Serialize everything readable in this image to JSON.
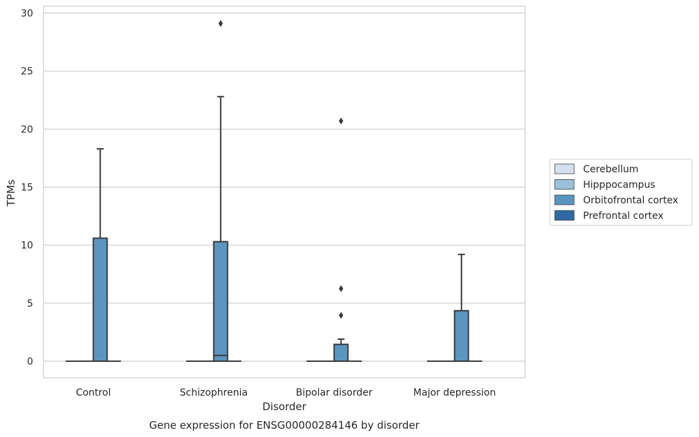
{
  "chart_data": {
    "type": "boxplot",
    "title": "Gene expression for ENSG00000284146 by disorder",
    "xlabel": "Disorder",
    "ylabel": "TPMs",
    "ylim": [
      -1.4,
      30.5
    ],
    "yticks": [
      0,
      5,
      10,
      15,
      20,
      25,
      30
    ],
    "grid": true,
    "legend_position": "right",
    "categories": [
      "Control",
      "Schizophrenia",
      "Bipolar disorder",
      "Major depression"
    ],
    "hue_order": [
      "Cerebellum",
      "Hipppocampus",
      "Orbitofrontal cortex",
      "Prefrontal cortex"
    ],
    "colors": {
      "Cerebellum": "#d4e1ee",
      "Hipppocampus": "#9ac0da",
      "Orbitofrontal cortex": "#5a96c0",
      "Prefrontal cortex": "#2f6aa3",
      "edge": "#3a3a3a",
      "grid": "#cccccc"
    },
    "boxes": [
      {
        "category": "Control",
        "hue": "Cerebellum",
        "q1": 0,
        "median": 0,
        "q3": 0,
        "whislo": 0,
        "whishi": 0,
        "fliers": []
      },
      {
        "category": "Control",
        "hue": "Hipppocampus",
        "q1": 0,
        "median": 0,
        "q3": 0,
        "whislo": 0,
        "whishi": 0,
        "fliers": []
      },
      {
        "category": "Control",
        "hue": "Orbitofrontal cortex",
        "q1": 0,
        "median": 0,
        "q3": 10.6,
        "whislo": 0,
        "whishi": 18.3,
        "fliers": []
      },
      {
        "category": "Control",
        "hue": "Prefrontal cortex",
        "q1": 0,
        "median": 0,
        "q3": 0,
        "whislo": 0,
        "whishi": 0,
        "fliers": []
      },
      {
        "category": "Schizophrenia",
        "hue": "Cerebellum",
        "q1": 0,
        "median": 0,
        "q3": 0,
        "whislo": 0,
        "whishi": 0,
        "fliers": []
      },
      {
        "category": "Schizophrenia",
        "hue": "Hipppocampus",
        "q1": 0,
        "median": 0,
        "q3": 0,
        "whislo": 0,
        "whishi": 0,
        "fliers": []
      },
      {
        "category": "Schizophrenia",
        "hue": "Orbitofrontal cortex",
        "q1": 0,
        "median": 0.5,
        "q3": 10.3,
        "whislo": 0,
        "whishi": 22.8,
        "fliers": [
          29.1
        ]
      },
      {
        "category": "Schizophrenia",
        "hue": "Prefrontal cortex",
        "q1": 0,
        "median": 0,
        "q3": 0,
        "whislo": 0,
        "whishi": 0,
        "fliers": []
      },
      {
        "category": "Bipolar disorder",
        "hue": "Cerebellum",
        "q1": 0,
        "median": 0,
        "q3": 0,
        "whislo": 0,
        "whishi": 0,
        "fliers": []
      },
      {
        "category": "Bipolar disorder",
        "hue": "Hipppocampus",
        "q1": 0,
        "median": 0,
        "q3": 0,
        "whislo": 0,
        "whishi": 0,
        "fliers": []
      },
      {
        "category": "Bipolar disorder",
        "hue": "Orbitofrontal cortex",
        "q1": 0,
        "median": 0,
        "q3": 1.45,
        "whislo": 0,
        "whishi": 1.9,
        "fliers": [
          3.95,
          6.25,
          20.7
        ]
      },
      {
        "category": "Bipolar disorder",
        "hue": "Prefrontal cortex",
        "q1": 0,
        "median": 0,
        "q3": 0,
        "whislo": 0,
        "whishi": 0,
        "fliers": []
      },
      {
        "category": "Major depression",
        "hue": "Cerebellum",
        "q1": 0,
        "median": 0,
        "q3": 0,
        "whislo": 0,
        "whishi": 0,
        "fliers": []
      },
      {
        "category": "Major depression",
        "hue": "Hipppocampus",
        "q1": 0,
        "median": 0,
        "q3": 0,
        "whislo": 0,
        "whishi": 0,
        "fliers": []
      },
      {
        "category": "Major depression",
        "hue": "Orbitofrontal cortex",
        "q1": 0,
        "median": 0,
        "q3": 4.35,
        "whislo": 0,
        "whishi": 9.2,
        "fliers": []
      },
      {
        "category": "Major depression",
        "hue": "Prefrontal cortex",
        "q1": 0,
        "median": 0,
        "q3": 0,
        "whislo": 0,
        "whishi": 0,
        "fliers": []
      }
    ]
  }
}
